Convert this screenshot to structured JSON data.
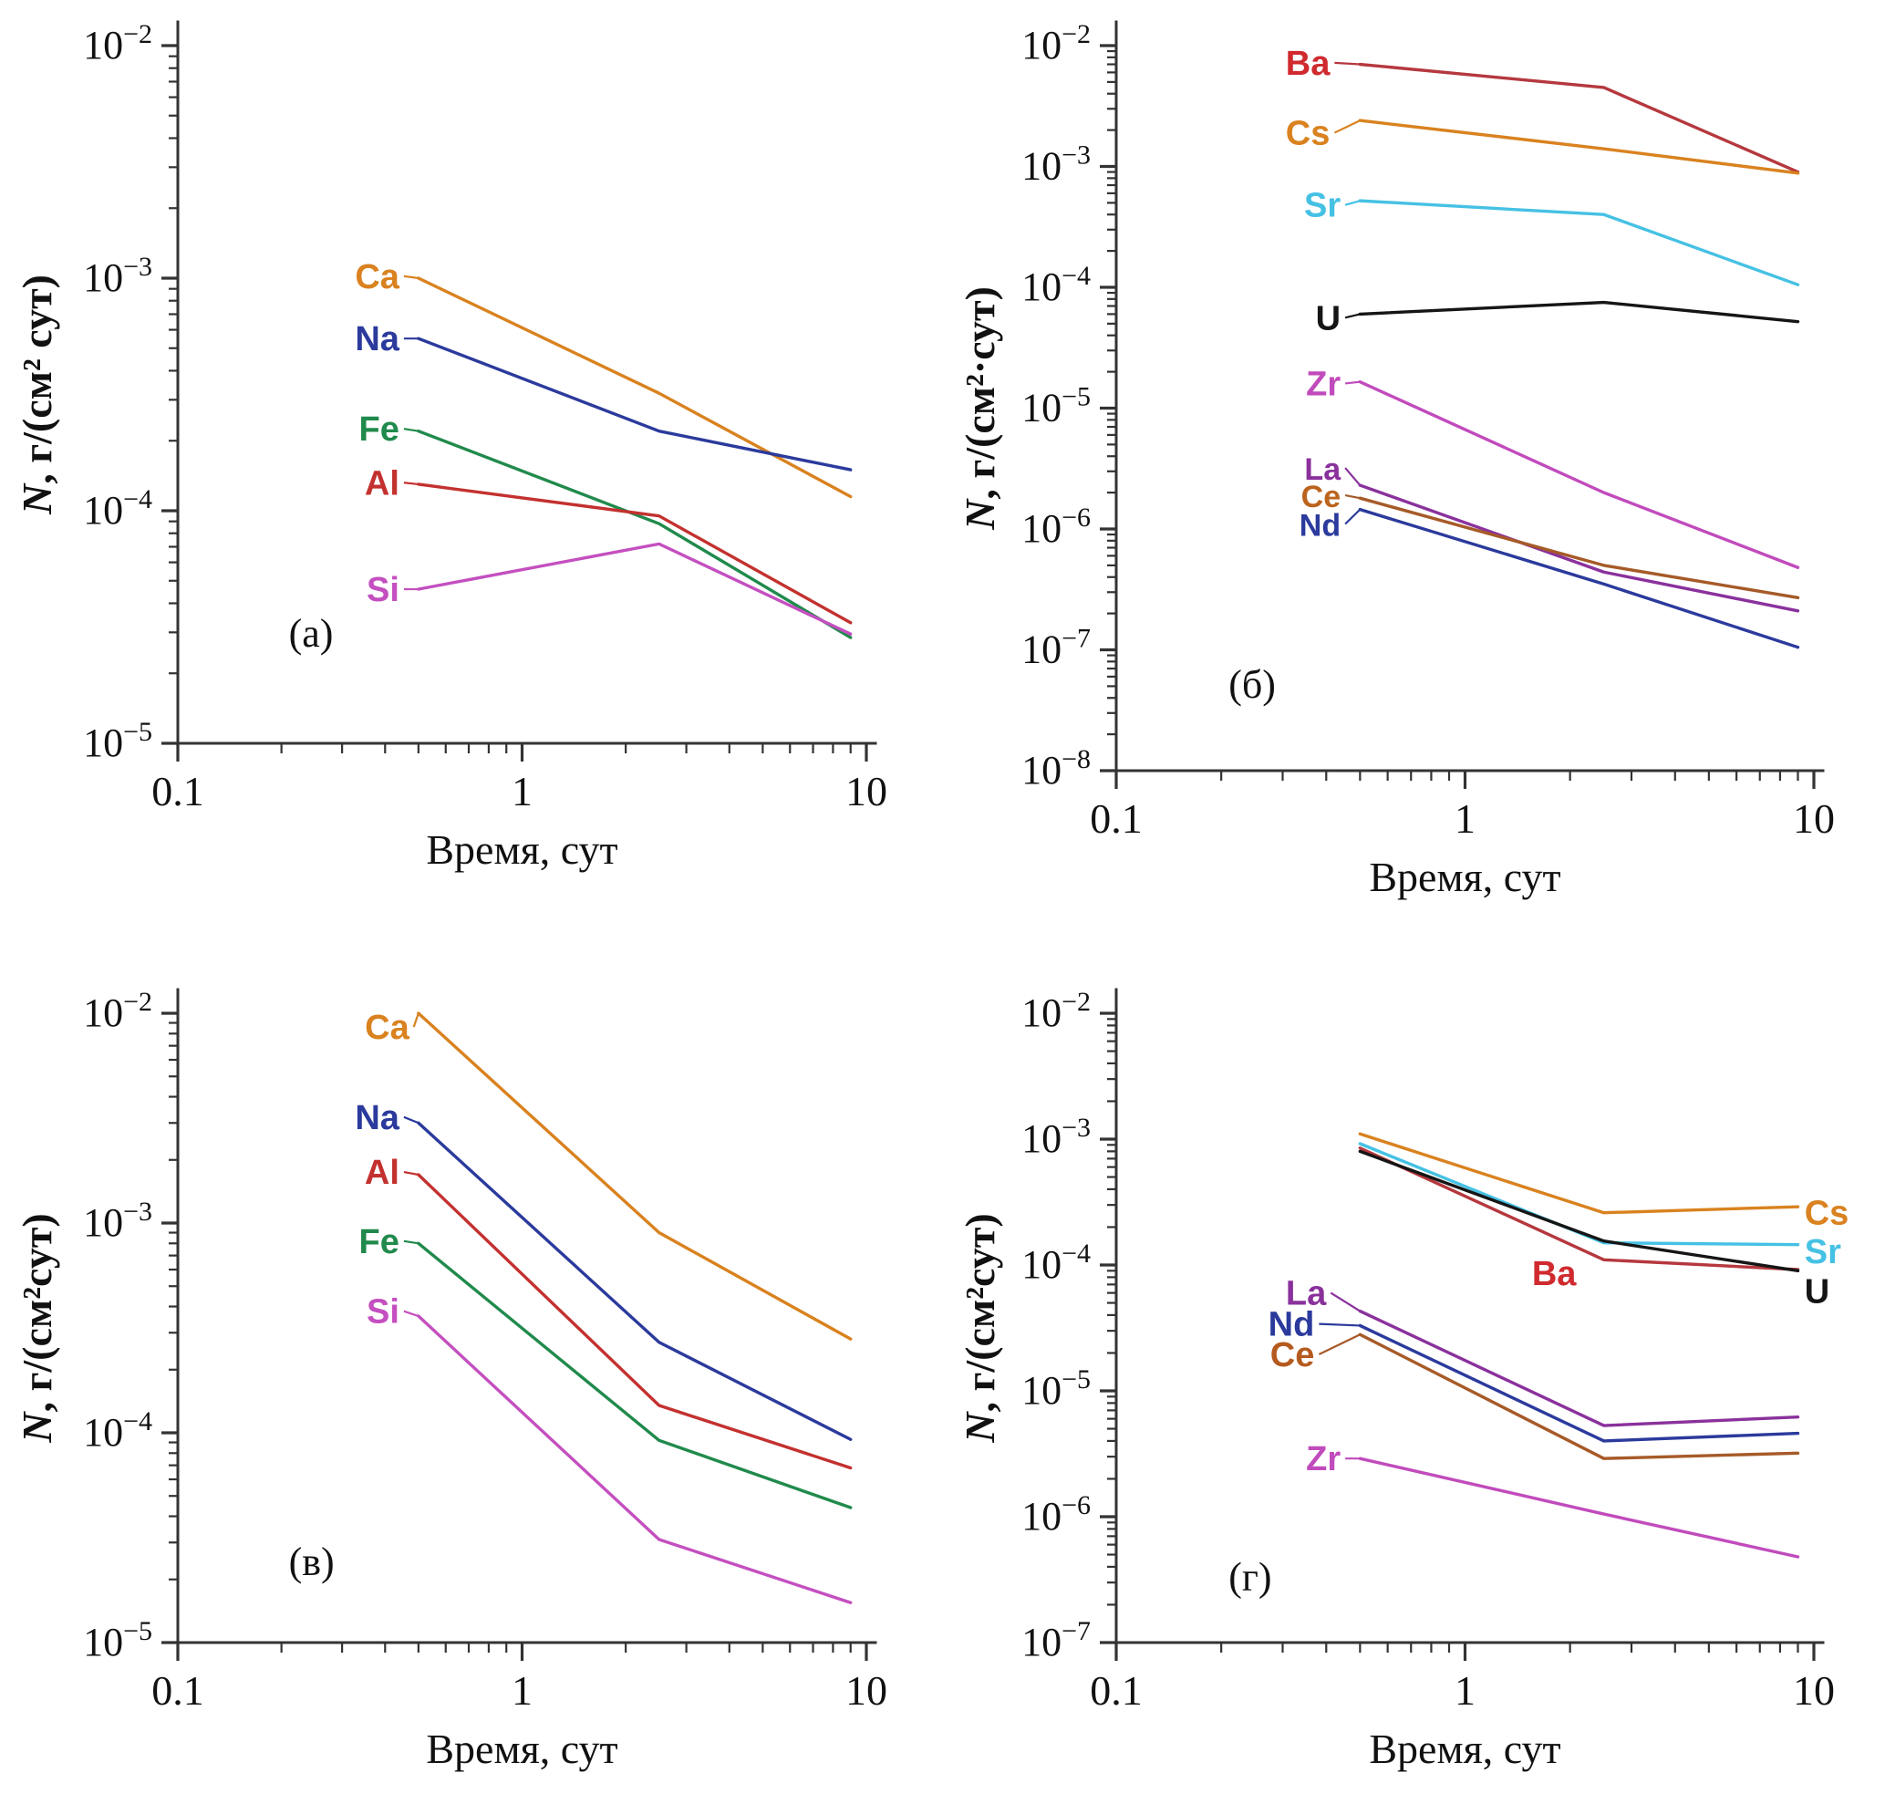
{
  "figure": {
    "background": "#ffffff",
    "axis_color": "#333333",
    "text_color": "#111111",
    "xlabel": "Время, сут",
    "x_tick_labels": [
      "0.1",
      "1",
      "10"
    ]
  },
  "chart_data": [
    {
      "type": "line",
      "panel_label": "(а)",
      "xlabel": "Время, сут",
      "ylabel_italic": "N",
      "ylabel_rest": ", г/(см² сут)",
      "xscale": "log",
      "yscale": "log",
      "xlim": [
        0.1,
        10
      ],
      "ylim": [
        1e-05,
        0.01
      ],
      "x_tick_values": [
        0.1,
        1,
        10
      ],
      "x_tick_labels": [
        "0.1",
        "1",
        "10"
      ],
      "y_tick_exponents": [
        -2,
        -3,
        -4,
        -5
      ],
      "grid": false,
      "legend": "inline-labels",
      "x": [
        0.5,
        2.5,
        9
      ],
      "series": [
        {
          "name": "Ca",
          "color": "#d9821f",
          "values": [
            0.001,
            0.00032,
            0.000115
          ],
          "label": {
            "x": 0.44,
            "y": 0.00102,
            "anchor": "end",
            "leader": true
          }
        },
        {
          "name": "Na",
          "color": "#2b3a9c",
          "values": [
            0.00055,
            0.00022,
            0.00015
          ],
          "label": {
            "x": 0.44,
            "y": 0.00055,
            "anchor": "end",
            "leader": true
          }
        },
        {
          "name": "Fe",
          "color": "#208a4c",
          "values": [
            0.00022,
            8.8e-05,
            2.85e-05
          ],
          "label": {
            "x": 0.44,
            "y": 0.000225,
            "anchor": "end",
            "leader": true
          }
        },
        {
          "name": "Al",
          "color": "#c3312f",
          "values": [
            0.00013,
            9.5e-05,
            3.3e-05
          ],
          "label": {
            "x": 0.44,
            "y": 0.000132,
            "anchor": "end",
            "leader": true
          }
        },
        {
          "name": "Si",
          "color": "#c44fc0",
          "values": [
            4.6e-05,
            7.2e-05,
            2.95e-05
          ],
          "label": {
            "x": 0.44,
            "y": 4.6e-05,
            "anchor": "end",
            "leader": true
          }
        }
      ],
      "panel_label_pos": {
        "x": 0.21,
        "y": 2.6e-05
      }
    },
    {
      "type": "line",
      "panel_label": "(б)",
      "xlabel": "Время, сут",
      "ylabel_italic": "N",
      "ylabel_rest": ", г/(см²·сут)",
      "xscale": "log",
      "yscale": "log",
      "xlim": [
        0.1,
        10
      ],
      "ylim": [
        1e-08,
        0.01
      ],
      "x_tick_values": [
        0.1,
        1,
        10
      ],
      "x_tick_labels": [
        "0.1",
        "1",
        "10"
      ],
      "y_tick_exponents": [
        -2,
        -3,
        -4,
        -5,
        -6,
        -7,
        -8
      ],
      "grid": false,
      "legend": "inline-labels",
      "x": [
        0.5,
        2.5,
        9
      ],
      "series": [
        {
          "name": "Ba",
          "color": "#b5383e",
          "label_color": "#d02a2e",
          "values": [
            0.007,
            0.0045,
            0.0009
          ],
          "label": {
            "x": 0.41,
            "y": 0.0072,
            "anchor": "end",
            "leader": true
          }
        },
        {
          "name": "Cs",
          "color": "#d9821f",
          "values": [
            0.0024,
            0.0014,
            0.00088
          ],
          "label": {
            "x": 0.41,
            "y": 0.0019,
            "anchor": "end",
            "leader": true
          }
        },
        {
          "name": "Sr",
          "color": "#45c1e4",
          "values": [
            0.00052,
            0.0004,
            0.000105
          ],
          "label": {
            "x": 0.44,
            "y": 0.00048,
            "anchor": "end",
            "leader": true
          }
        },
        {
          "name": "U",
          "color": "#151515",
          "values": [
            6e-05,
            7.5e-05,
            5.2e-05
          ],
          "label": {
            "x": 0.44,
            "y": 5.6e-05,
            "anchor": "end",
            "leader": true
          }
        },
        {
          "name": "Zr",
          "color": "#c14bbc",
          "values": [
            1.65e-05,
            2e-06,
            4.8e-07
          ],
          "label": {
            "x": 0.44,
            "y": 1.6e-05,
            "anchor": "end",
            "leader": true
          }
        },
        {
          "name": "La",
          "color": "#8a319c",
          "values": [
            2.3e-06,
            4.4e-07,
            2.1e-07
          ],
          "label": {
            "x": 0.44,
            "y": 3.2e-06,
            "anchor": "end",
            "leader": true,
            "size": 34
          }
        },
        {
          "name": "Ce",
          "color": "#a65a28",
          "label_color": "#bb641e",
          "values": [
            1.8e-06,
            5e-07,
            2.7e-07
          ],
          "label": {
            "x": 0.44,
            "y": 1.9e-06,
            "anchor": "end",
            "leader": true,
            "size": 34
          }
        },
        {
          "name": "Nd",
          "color": "#2b3a9c",
          "values": [
            1.45e-06,
            3.5e-07,
            1.05e-07
          ],
          "label": {
            "x": 0.44,
            "y": 1.1e-06,
            "anchor": "end",
            "leader": true,
            "size": 34
          }
        }
      ],
      "panel_label_pos": {
        "x": 0.21,
        "y": 4e-08
      }
    },
    {
      "type": "line",
      "panel_label": "(в)",
      "xlabel": "Время, сут",
      "ylabel_italic": "N",
      "ylabel_rest": ", г/(см²сут)",
      "xscale": "log",
      "yscale": "log",
      "xlim": [
        0.1,
        10
      ],
      "ylim": [
        1e-05,
        0.01
      ],
      "x_tick_values": [
        0.1,
        1,
        10
      ],
      "x_tick_labels": [
        "0.1",
        "1",
        "10"
      ],
      "y_tick_exponents": [
        -2,
        -3,
        -4,
        -5
      ],
      "grid": false,
      "legend": "inline-labels",
      "x": [
        0.5,
        2.5,
        9
      ],
      "series": [
        {
          "name": "Ca",
          "color": "#d9821f",
          "values": [
            0.01,
            0.0009,
            0.00028
          ],
          "label": {
            "x": 0.47,
            "y": 0.0086,
            "anchor": "end",
            "leader": true
          }
        },
        {
          "name": "Na",
          "color": "#2b3a9c",
          "values": [
            0.003,
            0.00027,
            9.3e-05
          ],
          "label": {
            "x": 0.44,
            "y": 0.0032,
            "anchor": "end",
            "leader": true
          }
        },
        {
          "name": "Al",
          "color": "#c3312f",
          "values": [
            0.0017,
            0.000135,
            6.8e-05
          ],
          "label": {
            "x": 0.44,
            "y": 0.00175,
            "anchor": "end",
            "leader": true
          }
        },
        {
          "name": "Fe",
          "color": "#208a4c",
          "values": [
            0.0008,
            9.2e-05,
            4.4e-05
          ],
          "label": {
            "x": 0.44,
            "y": 0.00082,
            "anchor": "end",
            "leader": true
          }
        },
        {
          "name": "Si",
          "color": "#c44fc0",
          "values": [
            0.00036,
            3.1e-05,
            1.55e-05
          ],
          "label": {
            "x": 0.44,
            "y": 0.00038,
            "anchor": "end",
            "leader": true
          }
        }
      ],
      "panel_label_pos": {
        "x": 0.21,
        "y": 2.1e-05
      }
    },
    {
      "type": "line",
      "panel_label": "(г)",
      "xlabel": "Время, сут",
      "ylabel_italic": "N",
      "ylabel_rest": ", г/(см²сут)",
      "xscale": "log",
      "yscale": "log",
      "xlim": [
        0.1,
        10
      ],
      "ylim": [
        1e-07,
        0.01
      ],
      "x_tick_values": [
        0.1,
        1,
        10
      ],
      "x_tick_labels": [
        "0.1",
        "1",
        "10"
      ],
      "y_tick_exponents": [
        -2,
        -3,
        -4,
        -5,
        -6,
        -7
      ],
      "grid": false,
      "legend": "inline-labels",
      "x": [
        0.5,
        2.5,
        9
      ],
      "series": [
        {
          "name": "Cs",
          "color": "#d9821f",
          "values": [
            0.0011,
            0.00026,
            0.00029
          ],
          "label": {
            "x": 9.4,
            "y": 0.00026,
            "anchor": "start"
          }
        },
        {
          "name": "Sr",
          "color": "#45c1e4",
          "values": [
            0.00092,
            0.00015,
            0.000145
          ],
          "label": {
            "x": 9.4,
            "y": 0.000128,
            "anchor": "start"
          }
        },
        {
          "name": "Ba",
          "color": "#b5383e",
          "label_color": "#d02a2e",
          "values": [
            0.00085,
            0.00011,
            9.2e-05
          ],
          "label": {
            "x": 1.8,
            "y": 8.6e-05,
            "anchor": "middle"
          }
        },
        {
          "name": "U",
          "color": "#151515",
          "values": [
            0.0008,
            0.000155,
            9e-05
          ],
          "label": {
            "x": 9.4,
            "y": 6.2e-05,
            "anchor": "start"
          }
        },
        {
          "name": "La",
          "color": "#8a319c",
          "values": [
            4.3e-05,
            5.3e-06,
            6.2e-06
          ],
          "label": {
            "x": 0.4,
            "y": 6e-05,
            "anchor": "end",
            "leader": true
          }
        },
        {
          "name": "Nd",
          "color": "#2b3a9c",
          "values": [
            3.3e-05,
            4e-06,
            4.6e-06
          ],
          "label": {
            "x": 0.37,
            "y": 3.4e-05,
            "anchor": "end",
            "leader": true
          }
        },
        {
          "name": "Ce",
          "color": "#a65a28",
          "label_color": "#b55a1e",
          "values": [
            2.8e-05,
            2.9e-06,
            3.2e-06
          ],
          "label": {
            "x": 0.37,
            "y": 1.95e-05,
            "anchor": "end",
            "leader": true
          }
        },
        {
          "name": "Zr",
          "color": "#c14bbc",
          "values": [
            2.9e-06,
            1.05e-06,
            4.8e-07
          ],
          "label": {
            "x": 0.44,
            "y": 2.9e-06,
            "anchor": "end",
            "leader": true
          }
        }
      ],
      "panel_label_pos": {
        "x": 0.21,
        "y": 2.6e-07
      }
    }
  ]
}
